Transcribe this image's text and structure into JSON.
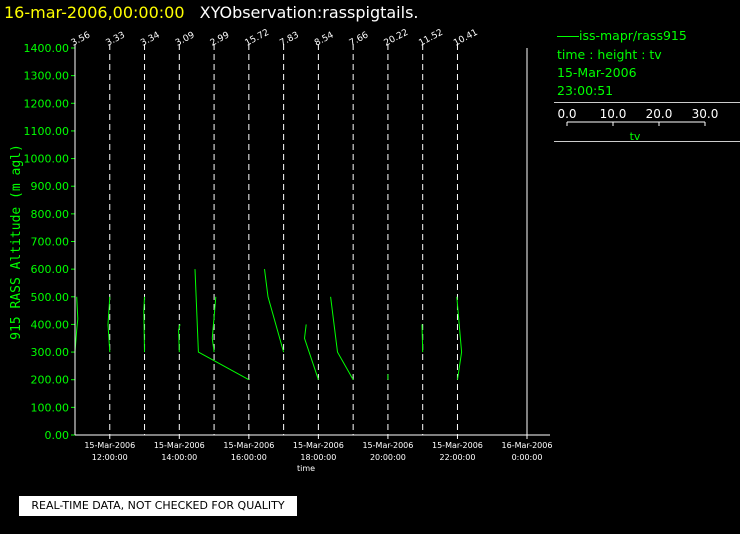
{
  "header": {
    "date_time": "16-mar-2006,00:00:00",
    "observation": "XYObservation:rasspigtails."
  },
  "legend": {
    "series_label": "iss-mapr/rass915",
    "mapping": "time : height : tv",
    "date": "15-Mar-2006",
    "time": "23:00:51",
    "scale_ticks": [
      "0.0",
      "10.0",
      "20.0",
      "30.0"
    ],
    "scale_label": "tv"
  },
  "footer": {
    "quality_note": "REAL-TIME DATA, NOT CHECKED FOR QUALITY"
  },
  "colors": {
    "background": "#000000",
    "data": "#00ff00",
    "title_date": "#ffff00",
    "axes": "#ffffff"
  },
  "chart_data": {
    "type": "line",
    "title": "",
    "ylabel": "915 RASS Altitude (m agl)",
    "xlabel": "time",
    "ylim": [
      0,
      1400
    ],
    "xlim_hours": [
      11.0,
      24.0
    ],
    "yticks": [
      "0.00",
      "100.00",
      "200.00",
      "300.00",
      "400.00",
      "500.00",
      "600.00",
      "700.00",
      "800.00",
      "900.00",
      "1000.00",
      "1100.00",
      "1200.00",
      "1300.00",
      "1400.00"
    ],
    "xticks": [
      {
        "date": "15-Mar-2006",
        "time": "12:00:00"
      },
      {
        "date": "15-Mar-2006",
        "time": "14:00:00"
      },
      {
        "date": "15-Mar-2006",
        "time": "16:00:00"
      },
      {
        "date": "15-Mar-2006",
        "time": "18:00:00"
      },
      {
        "date": "15-Mar-2006",
        "time": "20:00:00"
      },
      {
        "date": "15-Mar-2006",
        "time": "22:00:00"
      },
      {
        "date": "16-Mar-2006",
        "time": "0:00:00"
      }
    ],
    "profiles": [
      {
        "label": "3.56",
        "points": [
          [
            11.0,
            300
          ],
          [
            11.05,
            380
          ],
          [
            11.08,
            420
          ],
          [
            11.05,
            500
          ]
        ]
      },
      {
        "label": "3.33",
        "points": [
          [
            12.0,
            300
          ],
          [
            11.95,
            400
          ],
          [
            12.0,
            500
          ]
        ]
      },
      {
        "label": "3.34",
        "points": [
          [
            13.0,
            300
          ],
          [
            12.98,
            450
          ],
          [
            13.0,
            500
          ]
        ]
      },
      {
        "label": "3.09",
        "points": [
          [
            14.0,
            300
          ],
          [
            13.98,
            380
          ],
          [
            14.02,
            400
          ]
        ]
      },
      {
        "label": "2.99",
        "points": [
          [
            15.0,
            300
          ],
          [
            14.95,
            350
          ],
          [
            15.05,
            500
          ]
        ]
      },
      {
        "label": "15.72",
        "points": [
          [
            16.0,
            200
          ],
          [
            14.55,
            300
          ],
          [
            14.45,
            600
          ]
        ]
      },
      {
        "label": "7.83",
        "points": [
          [
            17.0,
            300
          ],
          [
            16.55,
            500
          ],
          [
            16.45,
            600
          ]
        ]
      },
      {
        "label": "8.54",
        "points": [
          [
            18.0,
            200
          ],
          [
            17.6,
            350
          ],
          [
            17.65,
            400
          ]
        ]
      },
      {
        "label": "7.66",
        "points": [
          [
            19.0,
            200
          ],
          [
            18.55,
            300
          ],
          [
            18.35,
            500
          ]
        ]
      },
      {
        "label": "20.22",
        "points": [
          [
            20.0,
            200
          ],
          [
            20.0,
            220
          ]
        ]
      },
      {
        "label": "11.52",
        "points": [
          [
            21.0,
            300
          ],
          [
            20.98,
            400
          ]
        ]
      },
      {
        "label": "10.41",
        "points": [
          [
            22.0,
            200
          ],
          [
            22.12,
            300
          ],
          [
            22.05,
            400
          ],
          [
            21.98,
            500
          ]
        ]
      }
    ],
    "grid": false
  }
}
